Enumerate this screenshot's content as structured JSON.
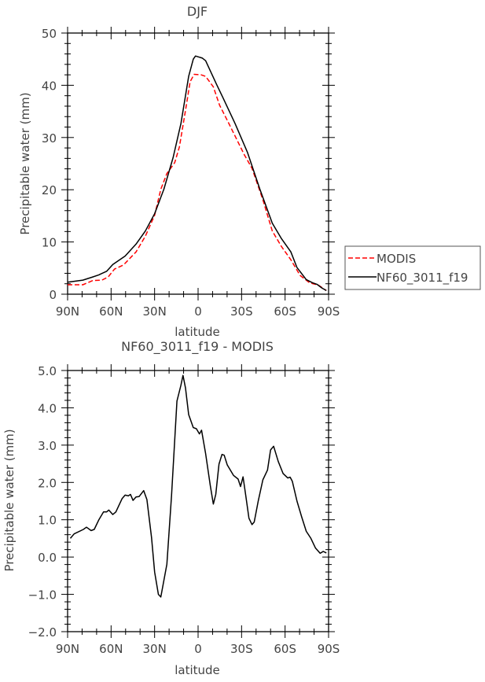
{
  "chart_data": [
    {
      "type": "line",
      "title": "DJF",
      "xlabel": "latitude",
      "ylabel": "Precipitable water (mm)",
      "xlim": [
        90,
        -90
      ],
      "ylim": [
        0,
        50
      ],
      "xticks": [
        90,
        60,
        30,
        0,
        -30,
        -60,
        -90
      ],
      "xtick_labels": [
        "90N",
        "60N",
        "30N",
        "0",
        "30S",
        "60S",
        "90S"
      ],
      "yticks": [
        0,
        10,
        20,
        30,
        40,
        50
      ],
      "ytick_labels": [
        "0",
        "10",
        "20",
        "30",
        "40",
        "50"
      ],
      "legend_position": "right",
      "series": [
        {
          "name": "MODIS",
          "color": "#ff0000",
          "dash": "dashed",
          "x": [
            90,
            79.5,
            72.7,
            66.3,
            62,
            57.7,
            51.4,
            42.8,
            36.4,
            30,
            25.7,
            21.5,
            16.1,
            12.9,
            8.7,
            5.5,
            2.7,
            -2,
            -5.2,
            -10.5,
            -14.8,
            -21.2,
            -31.9,
            -37.2,
            -44.7,
            -51.2,
            -57.6,
            -64,
            -70.4,
            -76.8,
            -83.2,
            -88.5
          ],
          "y": [
            1.8,
            1.8,
            2.6,
            2.7,
            3.3,
            4.8,
            5.6,
            8.1,
            11.1,
            15.1,
            20.1,
            23.1,
            25.2,
            28.2,
            35.2,
            40.7,
            42.1,
            42,
            41.7,
            39.7,
            36.2,
            32.7,
            26.7,
            24.1,
            18.1,
            12.1,
            9.1,
            6.6,
            3.6,
            2.2,
            1.7,
            0.7
          ]
        },
        {
          "name": "NF60_3011_f19",
          "color": "#000000",
          "dash": "solid",
          "x": [
            90,
            79.5,
            72.7,
            68.4,
            63,
            58.8,
            50.3,
            42.8,
            36.4,
            30,
            23.6,
            17.2,
            11.8,
            6.5,
            3.3,
            1.8,
            -3,
            -5.2,
            -12.7,
            -17,
            -25.5,
            -34,
            -42.6,
            -51.2,
            -57.6,
            -64,
            -68.2,
            -74.6,
            -78.9,
            -82,
            -85.3,
            -88.5
          ],
          "y": [
            2.3,
            2.7,
            3.3,
            3.7,
            4.4,
            5.7,
            7.3,
            9.6,
            12.1,
            15.4,
            20.1,
            26.2,
            32.7,
            41.7,
            45,
            45.6,
            45.2,
            44.7,
            40.2,
            37.7,
            32.7,
            27.2,
            20.1,
            13.6,
            10.6,
            8.1,
            5.1,
            2.8,
            2.2,
            1.9,
            1.2,
            0.7
          ]
        }
      ]
    },
    {
      "type": "line",
      "title": "NF60_3011_f19 - MODIS",
      "xlabel": "latitude",
      "ylabel": "Precipitable water (mm)",
      "xlim": [
        90,
        -90
      ],
      "ylim": [
        -2,
        5
      ],
      "xticks": [
        90,
        60,
        30,
        0,
        -30,
        -60,
        -90
      ],
      "xtick_labels": [
        "90N",
        "60N",
        "30N",
        "0",
        "30S",
        "60S",
        "90S"
      ],
      "yticks": [
        -2,
        -1,
        0,
        1,
        2,
        3,
        4,
        5
      ],
      "ytick_labels": [
        "−2.0",
        "−1.0",
        "0.0",
        "1.0",
        "2.0",
        "3.0",
        "4.0",
        "5.0"
      ],
      "series": [
        {
          "name": "NF60_3011_f19 - MODIS",
          "color": "#000000",
          "dash": "solid",
          "x": [
            88.1,
            85.5,
            79.1,
            77,
            73.8,
            71.6,
            68.4,
            65.2,
            63.1,
            61.6,
            58.8,
            56.7,
            52.4,
            50.3,
            48.1,
            46.6,
            44.9,
            42.8,
            40.7,
            37.5,
            35.3,
            32.1,
            30,
            27.4,
            25.7,
            21.5,
            18.3,
            14.6,
            11.9,
            10.4,
            8.7,
            6.5,
            3.3,
            1.2,
            -0.9,
            -2.4,
            -5.2,
            -8.4,
            -10.5,
            -12.2,
            -14.4,
            -16.5,
            -18,
            -20.1,
            -24.4,
            -27.6,
            -29.3,
            -31,
            -32.9,
            -35.1,
            -37.2,
            -38.7,
            -41.5,
            -44.7,
            -47.9,
            -50,
            -52.1,
            -55.3,
            -58.6,
            -61.8,
            -63.5,
            -65,
            -68.2,
            -71.4,
            -74.6,
            -77.8,
            -81,
            -84.2,
            -86.3,
            -88.5
          ],
          "y": [
            0.5,
            0.62,
            0.74,
            0.8,
            0.71,
            0.74,
            1.0,
            1.21,
            1.21,
            1.26,
            1.14,
            1.21,
            1.57,
            1.66,
            1.64,
            1.68,
            1.52,
            1.61,
            1.62,
            1.78,
            1.54,
            0.52,
            -0.4,
            -1.0,
            -1.07,
            -0.19,
            1.64,
            4.18,
            4.6,
            4.87,
            4.53,
            3.82,
            3.47,
            3.44,
            3.3,
            3.4,
            2.77,
            1.92,
            1.42,
            1.68,
            2.49,
            2.75,
            2.73,
            2.47,
            2.19,
            2.09,
            1.89,
            2.15,
            1.64,
            1.04,
            0.87,
            0.94,
            1.5,
            2.07,
            2.33,
            2.87,
            2.97,
            2.56,
            2.24,
            2.12,
            2.14,
            2.03,
            1.5,
            1.08,
            0.69,
            0.5,
            0.24,
            0.1,
            0.15,
            0.11
          ]
        }
      ]
    }
  ]
}
